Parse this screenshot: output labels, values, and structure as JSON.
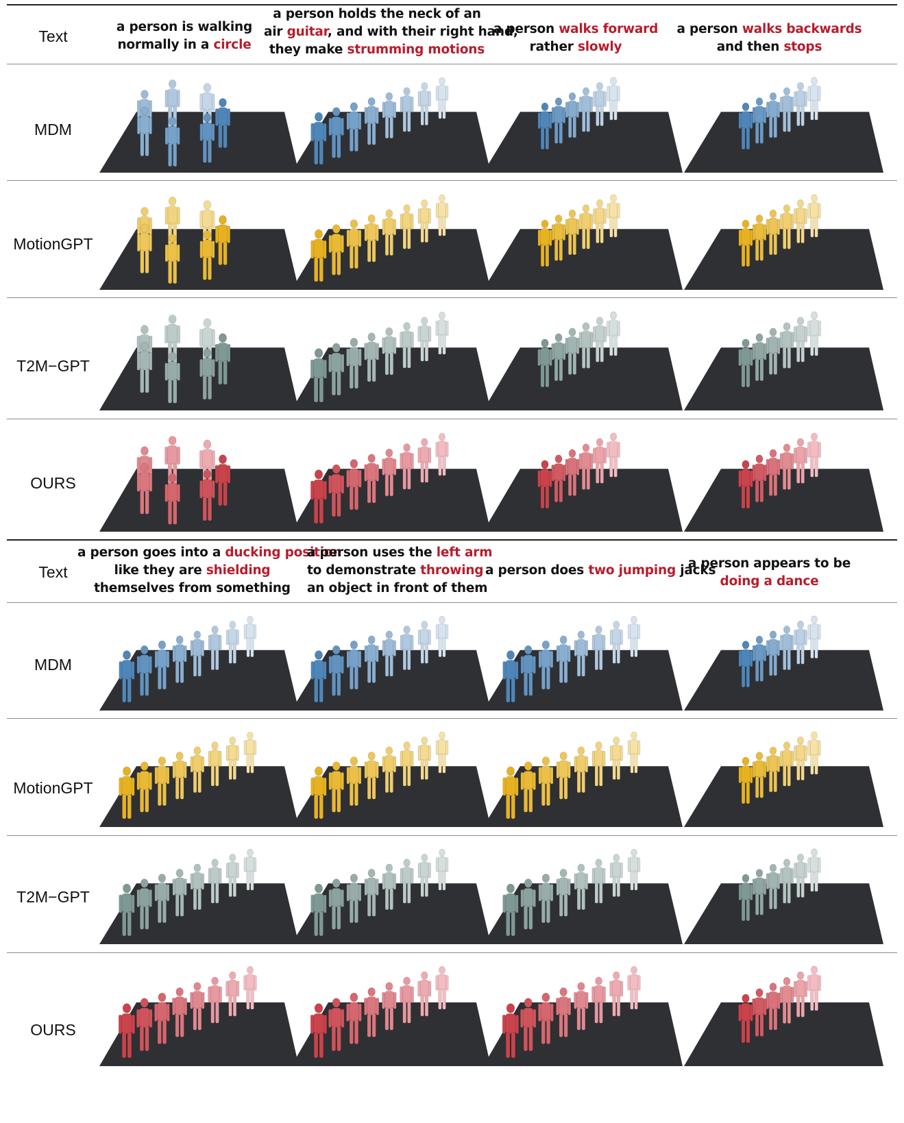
{
  "colors": {
    "highlight": "#b81c2b",
    "floor": "#2f3034",
    "MDM": [
      "#4f86b8",
      "#d7e3ef"
    ],
    "MotionGPT": [
      "#e6b222",
      "#f6e2a6"
    ],
    "T2M-GPT": [
      "#7e9894",
      "#d6dfdd"
    ],
    "OURS": [
      "#c8434b",
      "#f2bcc2"
    ]
  },
  "row_labels": {
    "text": "Text",
    "mdm": "MDM",
    "motiongpt": "MotionGPT",
    "t2m": "T2M−GPT",
    "ours": "OURS"
  },
  "captions": {
    "top": [
      [
        [
          {
            "t": "a person is walking",
            "h": false
          }
        ],
        [
          {
            "t": "normally in a ",
            "h": false
          },
          {
            "t": "circle",
            "h": true
          }
        ]
      ],
      [
        [
          {
            "t": "a person holds the neck of an",
            "h": false
          }
        ],
        [
          {
            "t": "air ",
            "h": false
          },
          {
            "t": "guitar",
            "h": true
          },
          {
            "t": ", and with their right hand,",
            "h": false
          }
        ],
        [
          {
            "t": "they make ",
            "h": false
          },
          {
            "t": "strumming motions",
            "h": true
          }
        ]
      ],
      [
        [
          {
            "t": "a person ",
            "h": false
          },
          {
            "t": "walks forward",
            "h": true
          }
        ],
        [
          {
            "t": "rather ",
            "h": false
          },
          {
            "t": "slowly",
            "h": true
          }
        ]
      ],
      [
        [
          {
            "t": "a person ",
            "h": false
          },
          {
            "t": "walks backwards",
            "h": true
          }
        ],
        [
          {
            "t": "and then ",
            "h": false
          },
          {
            "t": "stops",
            "h": true
          }
        ]
      ]
    ],
    "bottom": [
      [
        [
          {
            "t": "a person goes into a ",
            "h": false
          },
          {
            "t": "ducking position",
            "h": true
          }
        ],
        [
          {
            "t": "like they are ",
            "h": false
          },
          {
            "t": "shielding",
            "h": true
          }
        ],
        [
          {
            "t": "themselves from something",
            "h": false
          }
        ]
      ],
      [
        [
          {
            "t": "a person uses the ",
            "h": false
          },
          {
            "t": "left arm",
            "h": true
          }
        ],
        [
          {
            "t": "to demonstrate ",
            "h": false
          },
          {
            "t": "throwing",
            "h": true
          }
        ],
        [
          {
            "t": "an object in front of them",
            "h": false
          }
        ]
      ],
      [
        [
          {
            "t": "a person does ",
            "h": false
          },
          {
            "t": "two jumping",
            "h": true
          },
          {
            "t": " jacks",
            "h": false
          }
        ]
      ],
      [
        [
          {
            "t": "a person appears to be",
            "h": false
          }
        ],
        [
          {
            "t": "doing a dance",
            "h": true
          }
        ]
      ]
    ]
  }
}
